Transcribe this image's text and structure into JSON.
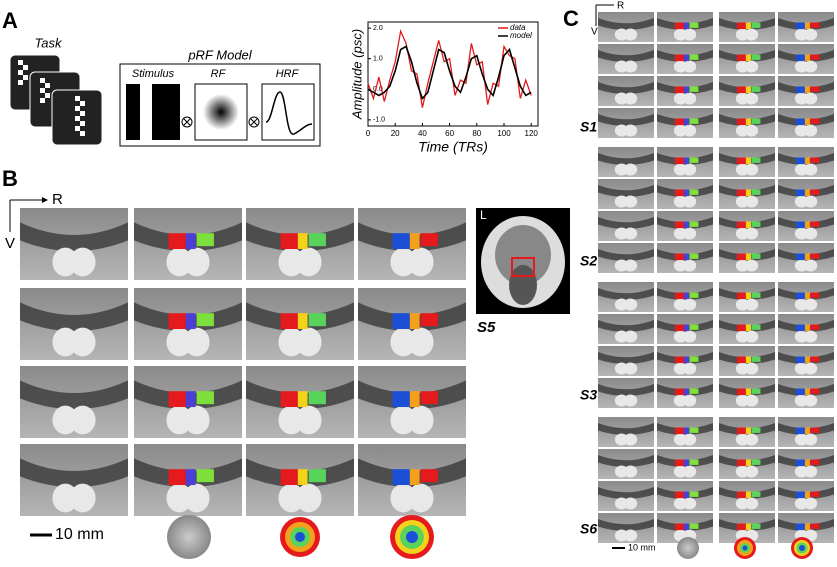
{
  "panel_labels": {
    "a": "A",
    "b": "B",
    "c": "C"
  },
  "panel_a": {
    "task": "Task",
    "model_title": "pRF Model",
    "stimulus": "Stimulus",
    "rf": "RF",
    "hrf": "HRF"
  },
  "chart_data": {
    "type": "line",
    "ylabel": "Amplitude (psc)",
    "xlabel": "Time (TRs)",
    "x": [
      0,
      4,
      8,
      12,
      16,
      20,
      24,
      28,
      32,
      36,
      40,
      44,
      48,
      52,
      56,
      60,
      64,
      68,
      72,
      76,
      80,
      84,
      88,
      92,
      96,
      100,
      104,
      108,
      112,
      116,
      120
    ],
    "series": [
      {
        "name": "data",
        "color": "#e41a1c",
        "values": [
          0.2,
          -0.3,
          0.4,
          -0.4,
          0.3,
          0.9,
          1.9,
          1.5,
          0.6,
          0.5,
          -0.6,
          0.2,
          0.9,
          1.6,
          0.9,
          1.0,
          -0.2,
          0.3,
          0.2,
          1.5,
          0.8,
          0.9,
          -0.5,
          0.2,
          0.1,
          1.4,
          1.1,
          1.0,
          -0.3,
          0.3,
          -0.2
        ]
      },
      {
        "name": "model",
        "color": "#000000",
        "values": [
          0,
          -0.1,
          -0.2,
          -0.1,
          0.1,
          0.6,
          1.3,
          1.4,
          0.9,
          0.2,
          -0.3,
          -0.1,
          0.6,
          1.3,
          1.2,
          0.6,
          0.1,
          -0.1,
          0.4,
          1.0,
          1.1,
          0.5,
          0,
          -0.2,
          0.4,
          1.1,
          1.3,
          0.7,
          0.1,
          -0.2,
          -0.1
        ]
      }
    ],
    "xlim": [
      0,
      125
    ],
    "ylim": [
      -1.2,
      2.2
    ],
    "xticks": [
      0,
      20,
      40,
      60,
      80,
      100,
      120
    ],
    "yticks": [
      {
        "value": -1,
        "label": "-1.0"
      },
      {
        "value": 0,
        "label": "0.0"
      },
      {
        "value": 1,
        "label": "1.0"
      },
      {
        "value": 2,
        "label": "2.0"
      }
    ],
    "legend": "upper right"
  },
  "panel_b": {
    "r": "R",
    "v": "V",
    "inset_l": "L",
    "subject": "S5",
    "scale_bar": "10 mm"
  },
  "panel_c": {
    "r": "R",
    "v": "V",
    "subjects": [
      "S1",
      "S2",
      "S3",
      "S6"
    ],
    "scale_bar": "10 mm"
  }
}
